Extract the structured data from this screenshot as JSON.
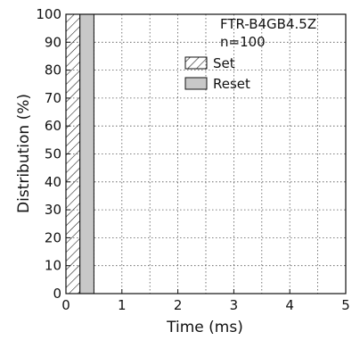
{
  "chart_data": {
    "type": "bar",
    "annotation": {
      "line1": "FTR-B4GB4.5Z",
      "line2": "n=100"
    },
    "xlabel": "Time (ms)",
    "ylabel": "Distribution (%)",
    "xlim": [
      0,
      5
    ],
    "ylim": [
      0,
      100
    ],
    "xticks": [
      0,
      1,
      2,
      3,
      4,
      5
    ],
    "yticks": [
      0,
      10,
      20,
      30,
      40,
      50,
      60,
      70,
      80,
      90,
      100
    ],
    "grid": true,
    "grid_style": "dotted",
    "legend_placement": "top-right",
    "series": [
      {
        "name": "Set",
        "pattern": "hatch",
        "color": "#ffffff",
        "edge_color": "#111111",
        "bins": [
          {
            "x0": 0.0,
            "x1": 0.25,
            "value": 100
          }
        ]
      },
      {
        "name": "Reset",
        "pattern": "solid",
        "color": "#c8c8c8",
        "edge_color": "#111111",
        "bins": [
          {
            "x0": 0.25,
            "x1": 0.5,
            "value": 100
          }
        ]
      }
    ],
    "colors": {
      "axis": "#111111",
      "grid": "#555555",
      "reset_fill": "#c8c8c8"
    }
  }
}
